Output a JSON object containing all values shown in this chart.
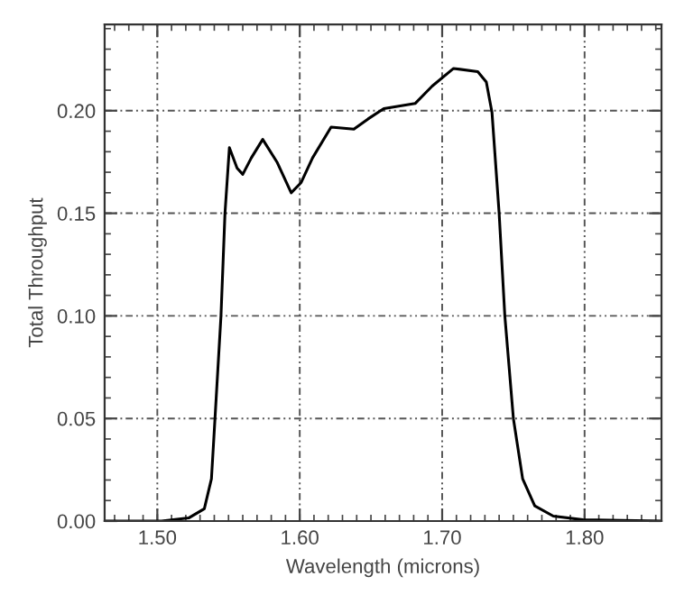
{
  "chart_data": {
    "type": "line",
    "xlabel": "Wavelength (microns)",
    "ylabel": "Total Throughput",
    "xlim": [
      1.463,
      1.854
    ],
    "ylim": [
      0,
      0.242
    ],
    "xticks": [
      {
        "value": 1.5,
        "label": "1.50"
      },
      {
        "value": 1.6,
        "label": "1.60"
      },
      {
        "value": 1.7,
        "label": "1.70"
      },
      {
        "value": 1.8,
        "label": "1.80"
      }
    ],
    "yticks": [
      {
        "value": 0,
        "label": "0.00"
      },
      {
        "value": 0.05,
        "label": "0.05"
      },
      {
        "value": 0.1,
        "label": "0.10"
      },
      {
        "value": 0.15,
        "label": "0.15"
      },
      {
        "value": 0.2,
        "label": "0.20"
      }
    ],
    "grid": true,
    "marker": "none",
    "line_style": "solid",
    "series": [
      {
        "color": "#000000",
        "x": [
          1.463,
          1.503,
          1.522,
          1.533,
          1.538,
          1.5405,
          1.5447,
          1.5475,
          1.5506,
          1.556,
          1.56,
          1.566,
          1.574,
          1.584,
          1.594,
          1.601,
          1.609,
          1.622,
          1.638,
          1.648,
          1.659,
          1.681,
          1.693,
          1.708,
          1.725,
          1.731,
          1.735,
          1.74,
          1.744,
          1.75,
          1.7565,
          1.765,
          1.778,
          1.799,
          1.854
        ],
        "values": [
          0,
          0,
          0.0015,
          0.006,
          0.0206,
          0.05,
          0.1,
          0.15,
          0.182,
          0.172,
          0.169,
          0.177,
          0.186,
          0.175,
          0.16,
          0.165,
          0.177,
          0.192,
          0.191,
          0.196,
          0.201,
          0.2035,
          0.212,
          0.2206,
          0.219,
          0.214,
          0.199,
          0.15,
          0.1,
          0.05,
          0.0206,
          0.0074,
          0.0024,
          0.0006,
          0
        ]
      }
    ]
  }
}
